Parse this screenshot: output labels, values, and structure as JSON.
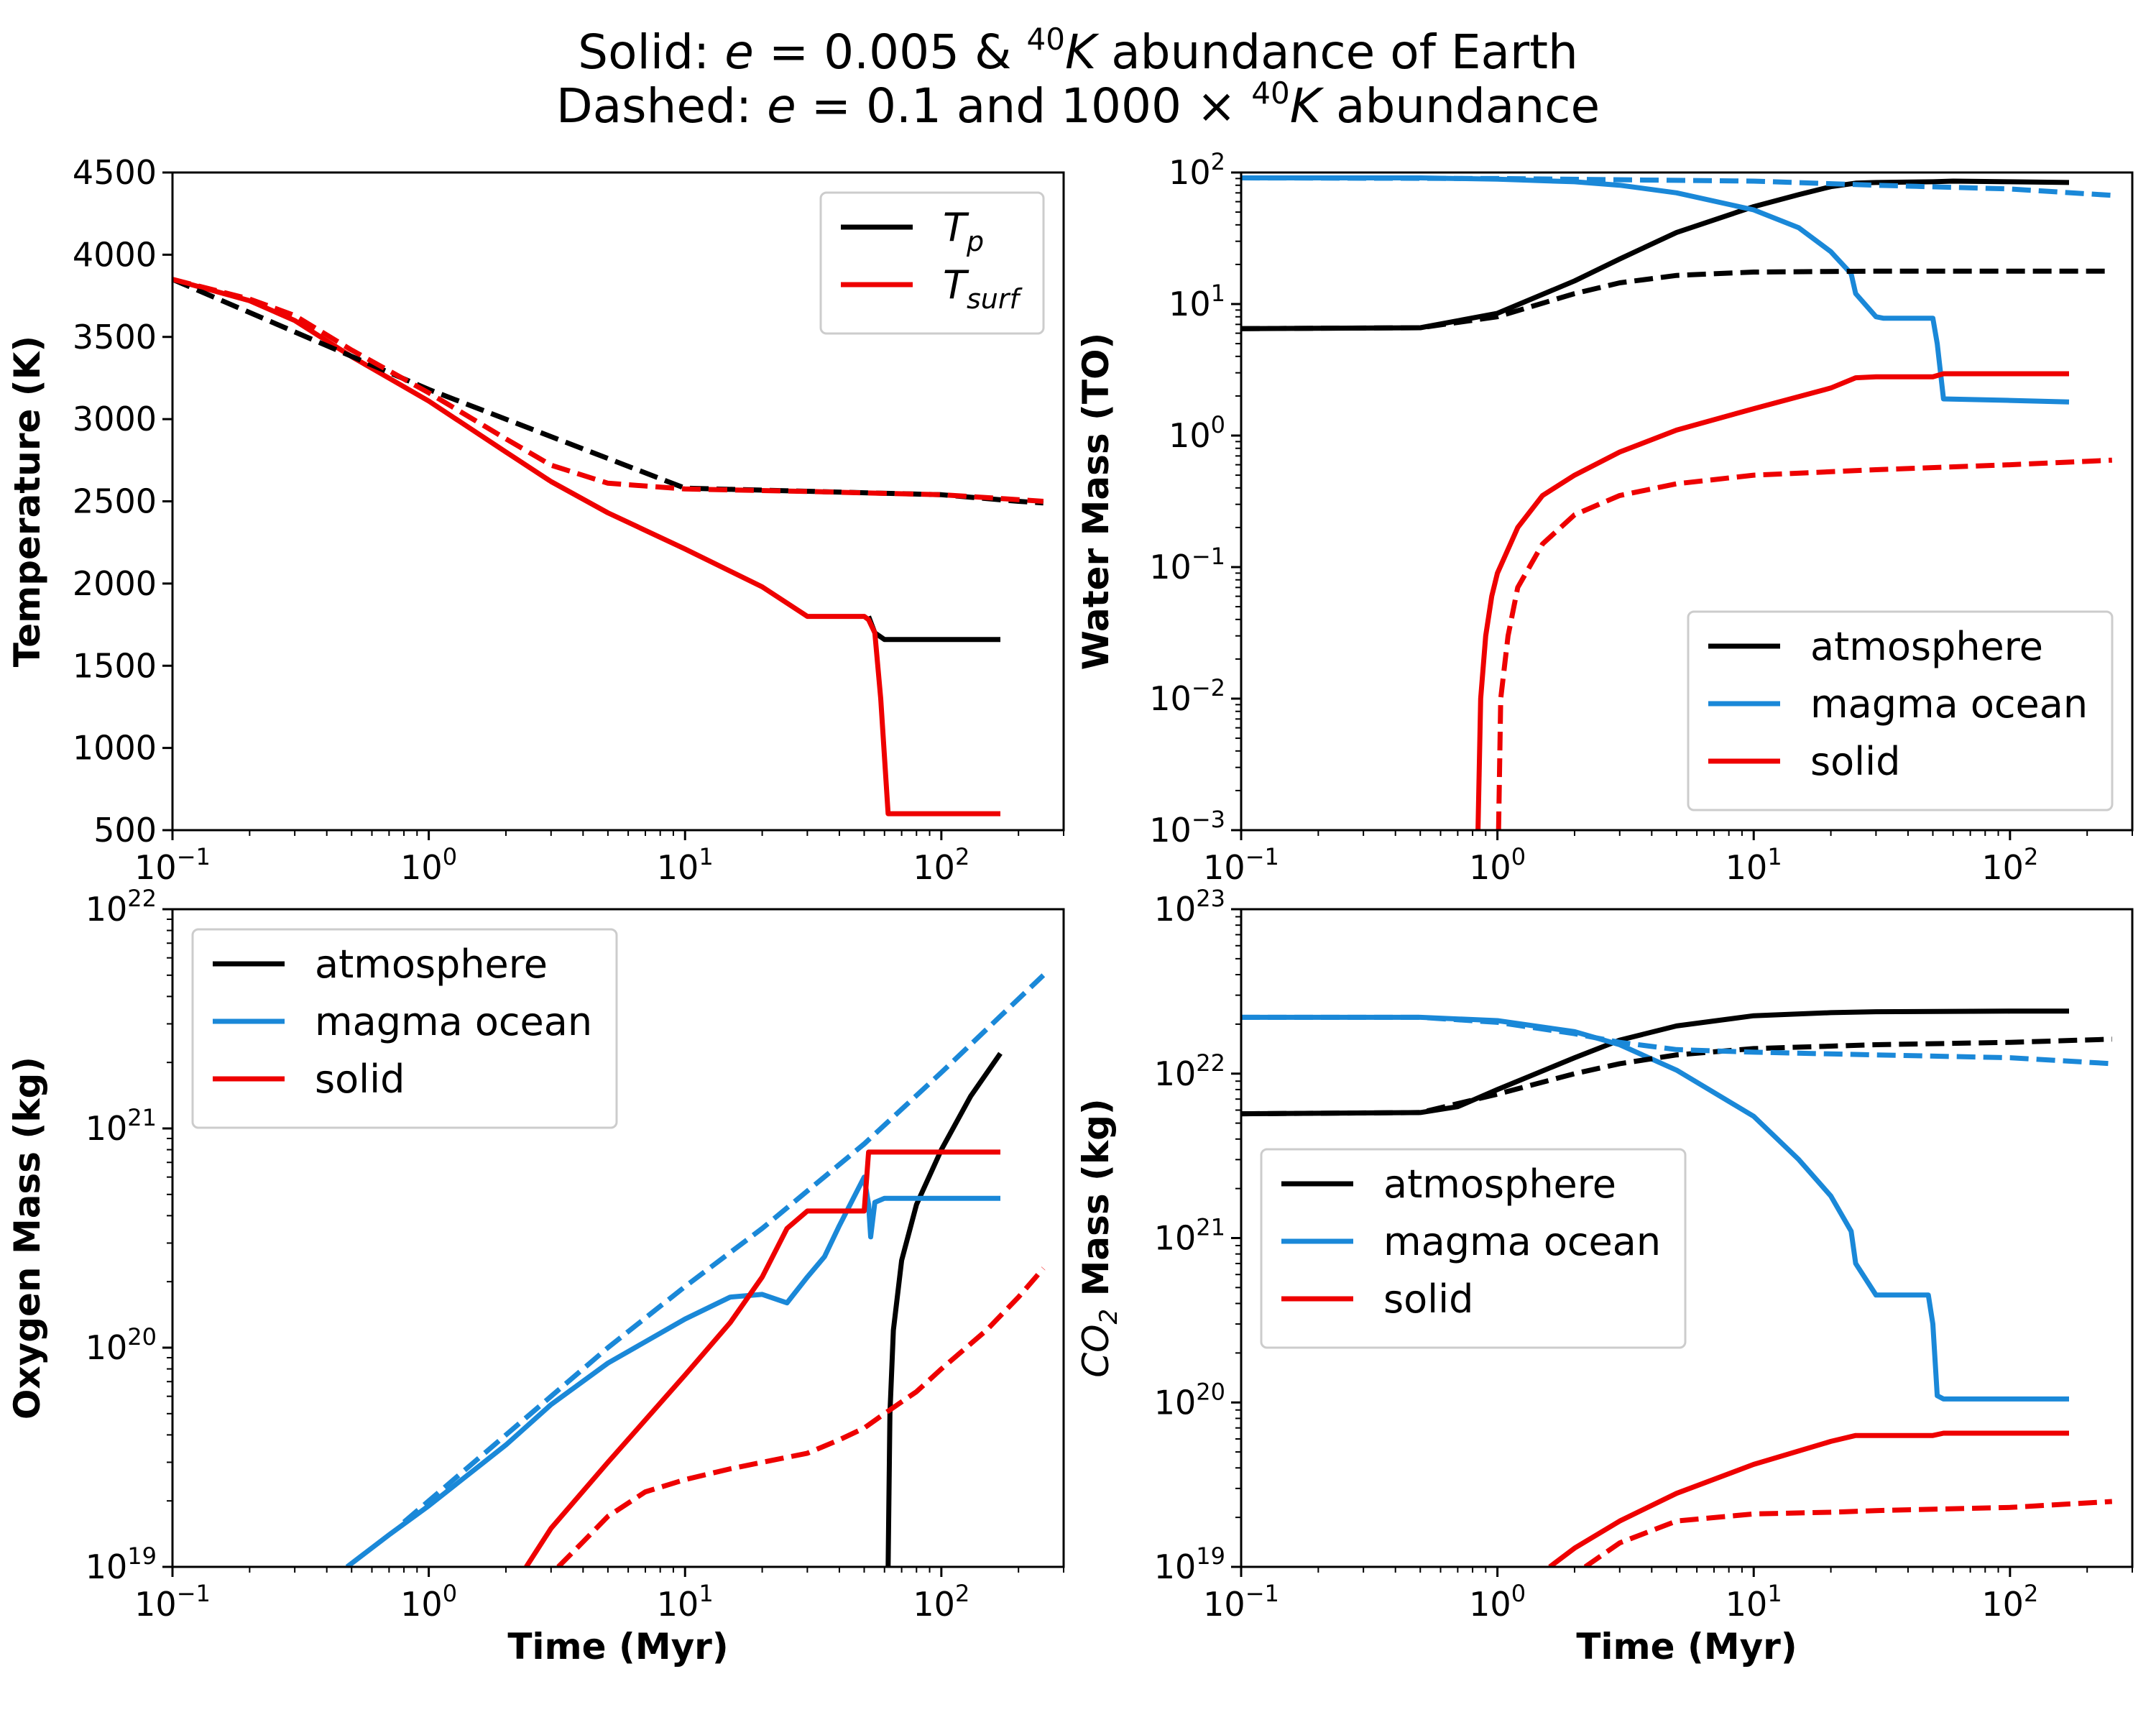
{
  "figure": {
    "title": {
      "line1": {
        "prefix": "Solid: ",
        "var": "e",
        "middle": " = 0.005 & ",
        "sup": "40",
        "iso": "K",
        "suffix": " abundance of Earth"
      },
      "line2": {
        "prefix": "Dashed: ",
        "var": "e",
        "middle": " = 0.1 and 1000 × ",
        "sup": "40",
        "iso": "K",
        "suffix": " abundance"
      }
    },
    "colors": {
      "atmosphere": "#000000",
      "magma_ocean": "#1a88d8",
      "solid": "#ee0000"
    }
  },
  "chart_data": [
    {
      "type": "line",
      "id": "temperature",
      "ylabel": "Temperature (K)",
      "xlabel": "",
      "xscale": "log",
      "xlim": [
        0.1,
        300
      ],
      "ylim": [
        500,
        4500
      ],
      "yscale": "linear",
      "yticks": [
        "500",
        "1000",
        "1500",
        "2000",
        "2500",
        "3000",
        "3500",
        "4000",
        "4500"
      ],
      "xticks": [
        {
          "base": "10",
          "exp": "−1"
        },
        {
          "base": "10",
          "exp": "0"
        },
        {
          "base": "10",
          "exp": "1"
        },
        {
          "base": "10",
          "exp": "2"
        }
      ],
      "legend": {
        "position": "upper right",
        "entries": [
          {
            "label_base": "T",
            "label_sub": "p",
            "color": "#000000"
          },
          {
            "label_base": "T",
            "label_sub": "surf",
            "color": "#ee0000"
          }
        ]
      },
      "series": [
        {
          "name": "T_p (solid)",
          "color": "#000000",
          "dash": false,
          "x": [
            52,
            55,
            60,
            100,
            170
          ],
          "y": [
            1800,
            1700,
            1660,
            1660,
            1660
          ]
        },
        {
          "name": "T_surf (solid)",
          "color": "#ee0000",
          "dash": false,
          "x": [
            0.1,
            0.2,
            0.3,
            0.5,
            1,
            2,
            3,
            5,
            10,
            20,
            30,
            45,
            50,
            52,
            55,
            58,
            62,
            100,
            170
          ],
          "y": [
            3850,
            3720,
            3600,
            3380,
            3110,
            2800,
            2620,
            2430,
            2210,
            1980,
            1800,
            1800,
            1800,
            1780,
            1700,
            1300,
            600,
            600,
            600
          ]
        },
        {
          "name": "T_p (dashed)",
          "color": "#000000",
          "dash": true,
          "x": [
            0.1,
            1,
            10,
            100,
            200,
            250
          ],
          "y": [
            3850,
            3180,
            2580,
            2540,
            2500,
            2490
          ]
        },
        {
          "name": "T_surf (dashed)",
          "color": "#ee0000",
          "dash": true,
          "x": [
            0.1,
            0.2,
            0.3,
            0.5,
            1,
            2,
            3,
            5,
            10,
            30,
            100,
            200,
            250
          ],
          "y": [
            3850,
            3730,
            3630,
            3420,
            3160,
            2880,
            2720,
            2610,
            2575,
            2560,
            2540,
            2510,
            2500
          ]
        }
      ]
    },
    {
      "type": "line",
      "id": "water",
      "ylabel": "Water Mass (TO)",
      "xlabel": "",
      "xscale": "log",
      "yscale": "log",
      "xlim": [
        0.1,
        300
      ],
      "ylim": [
        0.001,
        100
      ],
      "yticks": [
        {
          "base": "10",
          "exp": "−3"
        },
        {
          "base": "10",
          "exp": "−2"
        },
        {
          "base": "10",
          "exp": "−1"
        },
        {
          "base": "10",
          "exp": "0"
        },
        {
          "base": "10",
          "exp": "1"
        },
        {
          "base": "10",
          "exp": "2"
        }
      ],
      "xticks": [
        {
          "base": "10",
          "exp": "−1"
        },
        {
          "base": "10",
          "exp": "0"
        },
        {
          "base": "10",
          "exp": "1"
        },
        {
          "base": "10",
          "exp": "2"
        }
      ],
      "legend": {
        "position": "lower right",
        "entries": [
          {
            "label": "atmosphere",
            "color": "#000000"
          },
          {
            "label": "magma ocean",
            "color": "#1a88d8"
          },
          {
            "label": "solid",
            "color": "#ee0000"
          }
        ]
      },
      "series": [
        {
          "name": "atmosphere (solid)",
          "color": "#000000",
          "dash": false,
          "x": [
            0.1,
            0.5,
            1,
            2,
            3,
            5,
            10,
            15,
            20,
            25,
            30,
            50,
            60,
            100,
            170
          ],
          "y": [
            6.5,
            6.6,
            8.5,
            15,
            22,
            35,
            55,
            68,
            78,
            83,
            84,
            85,
            86,
            85,
            84
          ]
        },
        {
          "name": "magma ocean (solid)",
          "color": "#1a88d8",
          "dash": false,
          "x": [
            0.1,
            0.5,
            1,
            2,
            3,
            5,
            10,
            15,
            20,
            24,
            25,
            30,
            32,
            50,
            52,
            55,
            100,
            170
          ],
          "y": [
            91,
            91,
            89,
            85,
            80,
            70,
            52,
            38,
            25,
            17,
            12,
            8,
            7.8,
            7.8,
            5,
            1.9,
            1.85,
            1.8
          ]
        },
        {
          "name": "solid (solid)",
          "color": "#ee0000",
          "dash": false,
          "x": [
            0.84,
            0.86,
            0.9,
            0.95,
            1,
            1.2,
            1.5,
            2,
            3,
            5,
            10,
            20,
            25,
            30,
            50,
            55,
            100,
            170
          ],
          "y": [
            0.001,
            0.01,
            0.03,
            0.06,
            0.09,
            0.2,
            0.35,
            0.5,
            0.75,
            1.1,
            1.6,
            2.3,
            2.75,
            2.8,
            2.8,
            2.95,
            2.95,
            2.95
          ]
        },
        {
          "name": "atmosphere (dashed)",
          "color": "#000000",
          "dash": true,
          "x": [
            0.1,
            0.5,
            1,
            2,
            3,
            5,
            10,
            30,
            100,
            250
          ],
          "y": [
            6.5,
            6.6,
            8,
            12,
            14.5,
            16.5,
            17.5,
            17.8,
            17.8,
            17.8
          ]
        },
        {
          "name": "magma ocean (dashed)",
          "color": "#1a88d8",
          "dash": true,
          "x": [
            0.1,
            1,
            10,
            30,
            100,
            250
          ],
          "y": [
            91,
            90,
            86,
            80,
            75,
            67
          ]
        },
        {
          "name": "solid (dashed)",
          "color": "#ee0000",
          "dash": true,
          "x": [
            1.01,
            1.03,
            1.1,
            1.2,
            1.5,
            2,
            3,
            5,
            10,
            30,
            100,
            250
          ],
          "y": [
            0.001,
            0.01,
            0.03,
            0.07,
            0.15,
            0.25,
            0.35,
            0.43,
            0.5,
            0.55,
            0.6,
            0.65
          ]
        }
      ]
    },
    {
      "type": "line",
      "id": "oxygen",
      "ylabel": "Oxygen Mass (kg)",
      "xlabel": "Time (Myr)",
      "xscale": "log",
      "yscale": "log",
      "xlim": [
        0.1,
        300
      ],
      "ylim": [
        1e+19,
        1e+22
      ],
      "yticks": [
        {
          "base": "10",
          "exp": "19"
        },
        {
          "base": "10",
          "exp": "20"
        },
        {
          "base": "10",
          "exp": "21"
        },
        {
          "base": "10",
          "exp": "22"
        }
      ],
      "xticks": [
        {
          "base": "10",
          "exp": "−1"
        },
        {
          "base": "10",
          "exp": "0"
        },
        {
          "base": "10",
          "exp": "1"
        },
        {
          "base": "10",
          "exp": "2"
        }
      ],
      "legend": {
        "position": "upper left",
        "entries": [
          {
            "label": "atmosphere",
            "color": "#000000"
          },
          {
            "label": "magma ocean",
            "color": "#1a88d8"
          },
          {
            "label": "solid",
            "color": "#ee0000"
          }
        ]
      },
      "series": [
        {
          "name": "atmosphere (solid)",
          "color": "#000000",
          "dash": false,
          "x": [
            62,
            63,
            65,
            70,
            80,
            100,
            130,
            170
          ],
          "y": [
            1e+19,
            5e+19,
            1.2e+20,
            2.5e+20,
            4.5e+20,
            8e+20,
            1.4e+21,
            2.2e+21
          ]
        },
        {
          "name": "magma ocean (solid)",
          "color": "#1a88d8",
          "dash": false,
          "x": [
            0.48,
            0.7,
            1,
            2,
            3,
            5,
            10,
            15,
            20,
            25,
            30,
            35,
            40,
            50,
            52,
            53,
            55,
            60,
            100,
            170
          ],
          "y": [
            1e+19,
            1.4e+19,
            1.9e+19,
            3.6e+19,
            5.5e+19,
            8.5e+19,
            1.35e+20,
            1.7e+20,
            1.75e+20,
            1.6e+20,
            2.1e+20,
            2.6e+20,
            3.6e+20,
            6e+20,
            4.5e+20,
            3.2e+20,
            4.6e+20,
            4.8e+20,
            4.8e+20,
            4.8e+20
          ]
        },
        {
          "name": "solid (solid)",
          "color": "#ee0000",
          "dash": false,
          "x": [
            2.4,
            3,
            5,
            10,
            15,
            20,
            25,
            30,
            40,
            45,
            50,
            52,
            55,
            100,
            170
          ],
          "y": [
            1e+19,
            1.5e+19,
            3e+19,
            7.5e+19,
            1.3e+20,
            2.1e+20,
            3.5e+20,
            4.2e+20,
            4.2e+20,
            4.2e+20,
            4.2e+20,
            7.8e+20,
            7.8e+20,
            7.8e+20,
            7.8e+20
          ]
        },
        {
          "name": "magma ocean (dashed)",
          "color": "#1a88d8",
          "dash": true,
          "x": [
            0.8,
            1,
            2,
            5,
            10,
            20,
            50,
            100,
            250
          ],
          "y": [
            1.6e+19,
            2e+19,
            4e+19,
            1e+20,
            1.9e+20,
            3.5e+20,
            8.5e+20,
            1.8e+21,
            5e+21
          ]
        },
        {
          "name": "solid (dashed)",
          "color": "#ee0000",
          "dash": true,
          "x": [
            3.2,
            4,
            5,
            7,
            10,
            15,
            20,
            30,
            40,
            50,
            60,
            80,
            100,
            150,
            200,
            250
          ],
          "y": [
            1e+19,
            1.3e+19,
            1.7e+19,
            2.2e+19,
            2.5e+19,
            2.8e+19,
            3e+19,
            3.3e+19,
            3.8e+19,
            4.3e+19,
            5e+19,
            6.3e+19,
            8e+19,
            1.2e+20,
            1.7e+20,
            2.3e+20
          ]
        }
      ]
    },
    {
      "type": "line",
      "id": "co2",
      "ylabel": "CO2 Mass (kg)",
      "xlabel": "Time (Myr)",
      "xscale": "log",
      "yscale": "log",
      "xlim": [
        0.1,
        300
      ],
      "ylim": [
        1e+19,
        1e+23
      ],
      "yticks": [
        {
          "base": "10",
          "exp": "19"
        },
        {
          "base": "10",
          "exp": "20"
        },
        {
          "base": "10",
          "exp": "21"
        },
        {
          "base": "10",
          "exp": "22"
        },
        {
          "base": "10",
          "exp": "23"
        }
      ],
      "xticks": [
        {
          "base": "10",
          "exp": "−1"
        },
        {
          "base": "10",
          "exp": "0"
        },
        {
          "base": "10",
          "exp": "1"
        },
        {
          "base": "10",
          "exp": "2"
        }
      ],
      "ylabel_parts": {
        "base": "CO",
        "sub": "2",
        "rest": " Mass (kg)"
      },
      "legend": {
        "position": "center left",
        "entries": [
          {
            "label": "atmosphere",
            "color": "#000000"
          },
          {
            "label": "magma ocean",
            "color": "#1a88d8"
          },
          {
            "label": "solid",
            "color": "#ee0000"
          }
        ]
      },
      "series": [
        {
          "name": "atmosphere (solid)",
          "color": "#000000",
          "dash": false,
          "x": [
            0.1,
            0.5,
            0.7,
            1,
            2,
            3,
            5,
            10,
            20,
            30,
            100,
            170
          ],
          "y": [
            5.7e+21,
            5.8e+21,
            6.3e+21,
            8e+21,
            1.25e+22,
            1.6e+22,
            1.95e+22,
            2.25e+22,
            2.35e+22,
            2.38e+22,
            2.4e+22,
            2.4e+22
          ]
        },
        {
          "name": "magma ocean (solid)",
          "color": "#1a88d8",
          "dash": false,
          "x": [
            0.1,
            0.5,
            1,
            2,
            3,
            5,
            10,
            15,
            20,
            24,
            25,
            30,
            32,
            48,
            50,
            52,
            55,
            100,
            170
          ],
          "y": [
            2.2e+22,
            2.2e+22,
            2.1e+22,
            1.8e+22,
            1.5e+22,
            1.05e+22,
            5.5e+21,
            3e+21,
            1.8e+21,
            1.1e+21,
            7e+20,
            4.5e+20,
            4.5e+20,
            4.5e+20,
            3e+20,
            1.1e+20,
            1.05e+20,
            1.05e+20,
            1.05e+20
          ]
        },
        {
          "name": "solid (solid)",
          "color": "#ee0000",
          "dash": false,
          "x": [
            1.6,
            2,
            3,
            5,
            10,
            20,
            25,
            30,
            50,
            55,
            100,
            170
          ],
          "y": [
            1e+19,
            1.3e+19,
            1.9e+19,
            2.8e+19,
            4.2e+19,
            5.8e+19,
            6.3e+19,
            6.3e+19,
            6.3e+19,
            6.5e+19,
            6.5e+19,
            6.5e+19
          ]
        },
        {
          "name": "atmosphere (dashed)",
          "color": "#000000",
          "dash": true,
          "x": [
            0.1,
            0.5,
            1,
            2,
            3,
            5,
            10,
            30,
            100,
            250
          ],
          "y": [
            5.7e+21,
            5.8e+21,
            7.5e+21,
            1e+22,
            1.15e+22,
            1.3e+22,
            1.42e+22,
            1.5e+22,
            1.55e+22,
            1.62e+22
          ]
        },
        {
          "name": "magma ocean (dashed)",
          "color": "#1a88d8",
          "dash": true,
          "x": [
            0.1,
            0.5,
            1,
            2,
            3,
            5,
            10,
            30,
            100,
            250
          ],
          "y": [
            2.2e+22,
            2.2e+22,
            2.05e+22,
            1.75e+22,
            1.55e+22,
            1.4e+22,
            1.35e+22,
            1.3e+22,
            1.25e+22,
            1.15e+22
          ]
        },
        {
          "name": "solid (dashed)",
          "color": "#ee0000",
          "dash": true,
          "x": [
            2.2,
            3,
            5,
            10,
            20,
            30,
            100,
            250
          ],
          "y": [
            1e+19,
            1.4e+19,
            1.9e+19,
            2.1e+19,
            2.15e+19,
            2.2e+19,
            2.3e+19,
            2.5e+19
          ]
        }
      ]
    }
  ]
}
